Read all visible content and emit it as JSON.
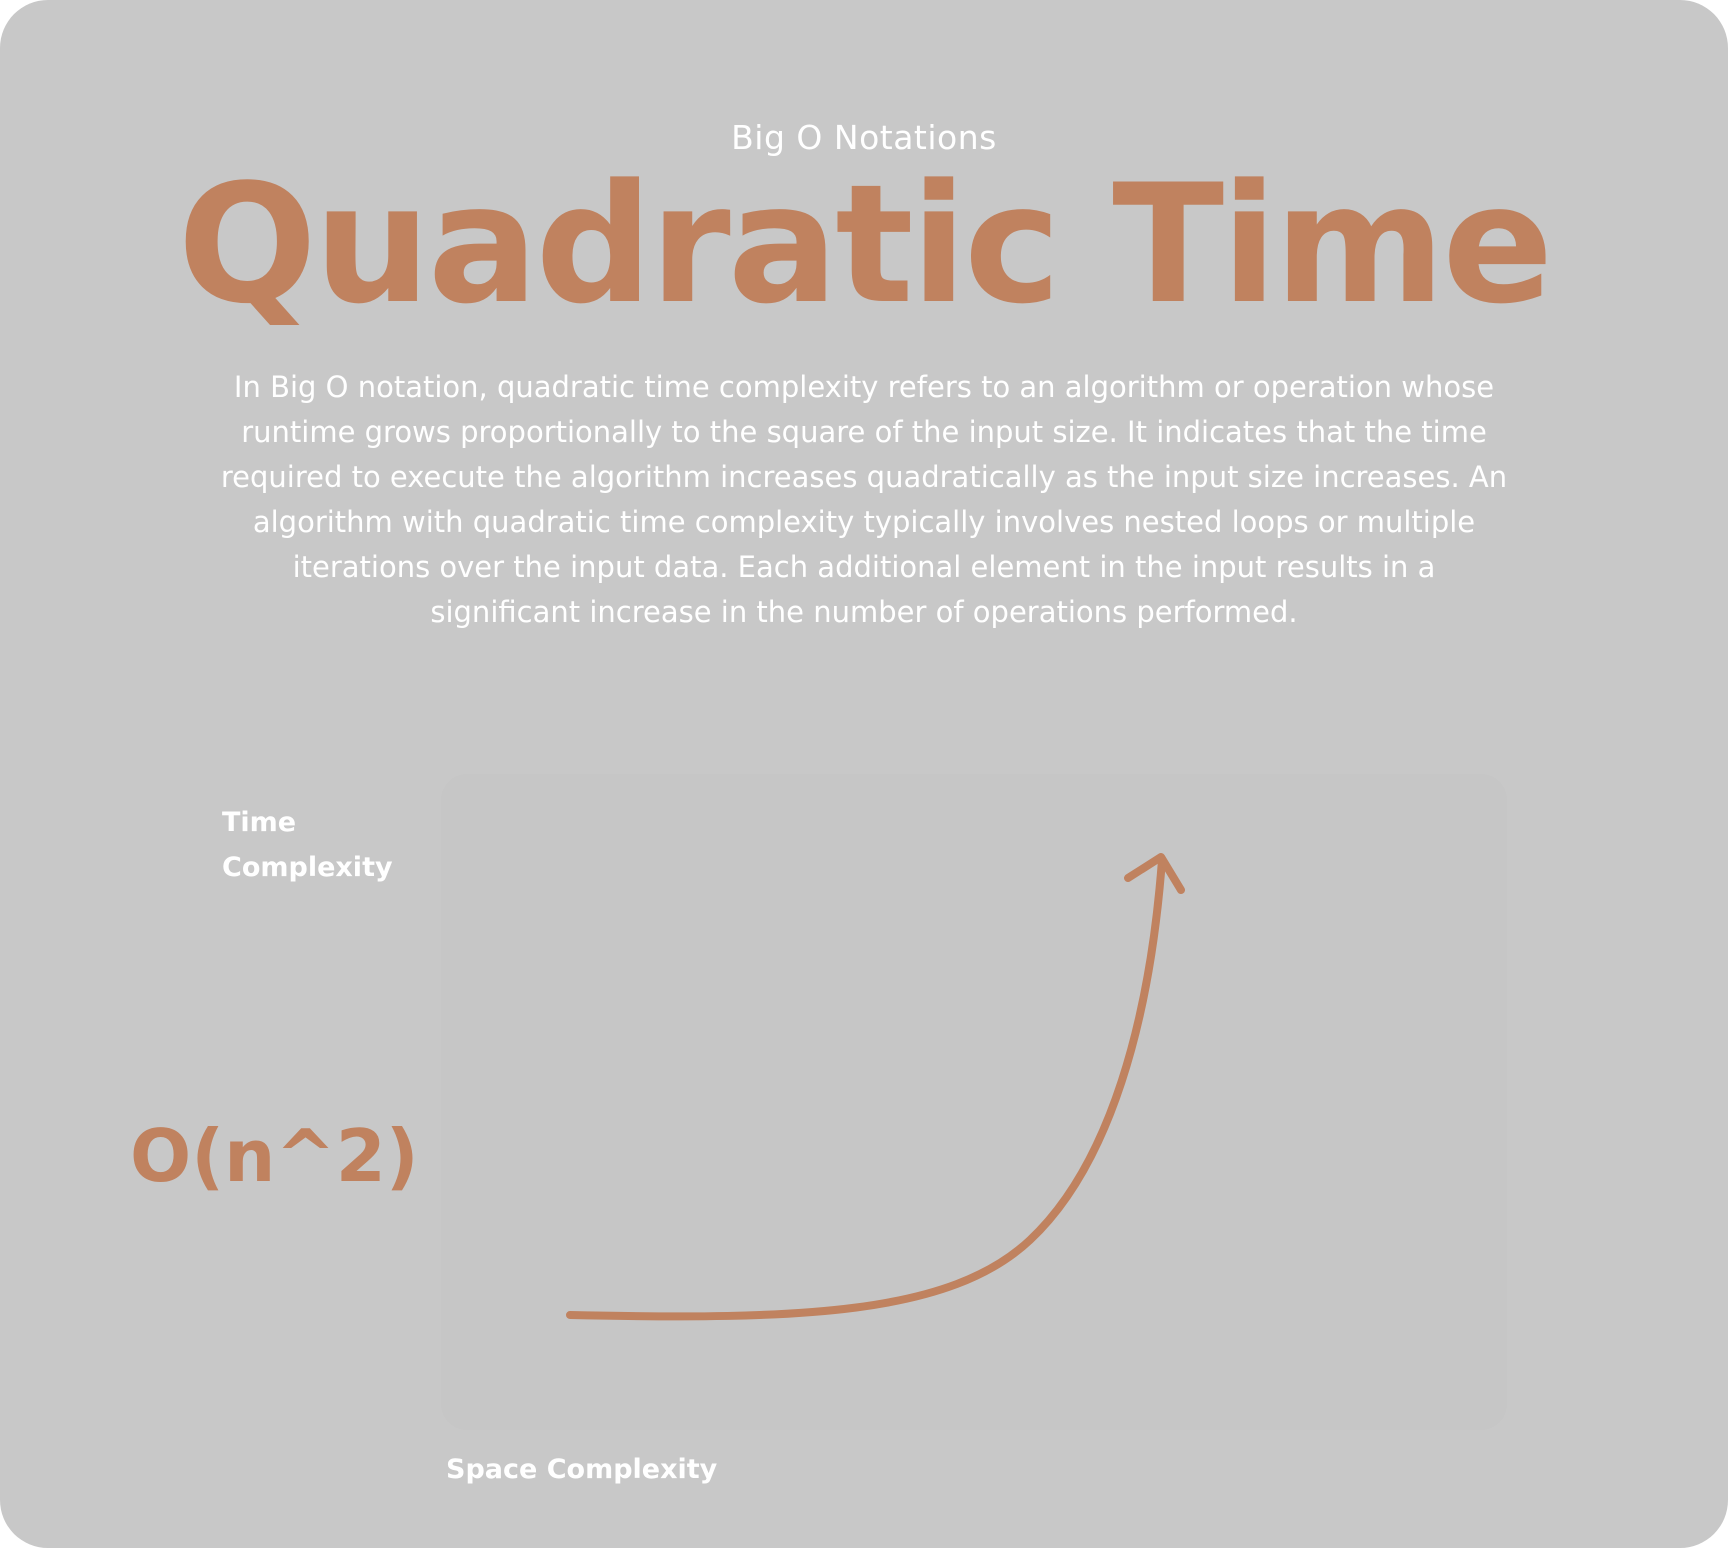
{
  "header": {
    "eyebrow": "Big O Notations",
    "title": "Quadratic Time"
  },
  "description": "In Big O notation, quadratic time complexity refers to an algorithm or operation whose runtime grows proportionally to the square of the input size. It indicates that the time required to execute the algorithm increases quadratically as the input size increases. An algorithm with quadratic time complexity typically involves nested loops or multiple iterations over the input data. Each additional element in the input results in a significant increase in the number of operations performed.",
  "diagram": {
    "y_axis_label": "Time\nComplexity",
    "x_axis_label": "Space Complexity",
    "notation_label": "O(n^2)",
    "curve": "quadratic growth arrow"
  },
  "colors": {
    "accent": "#c0825f",
    "background": "#c8c8c8",
    "text_light": "#ffffff"
  }
}
